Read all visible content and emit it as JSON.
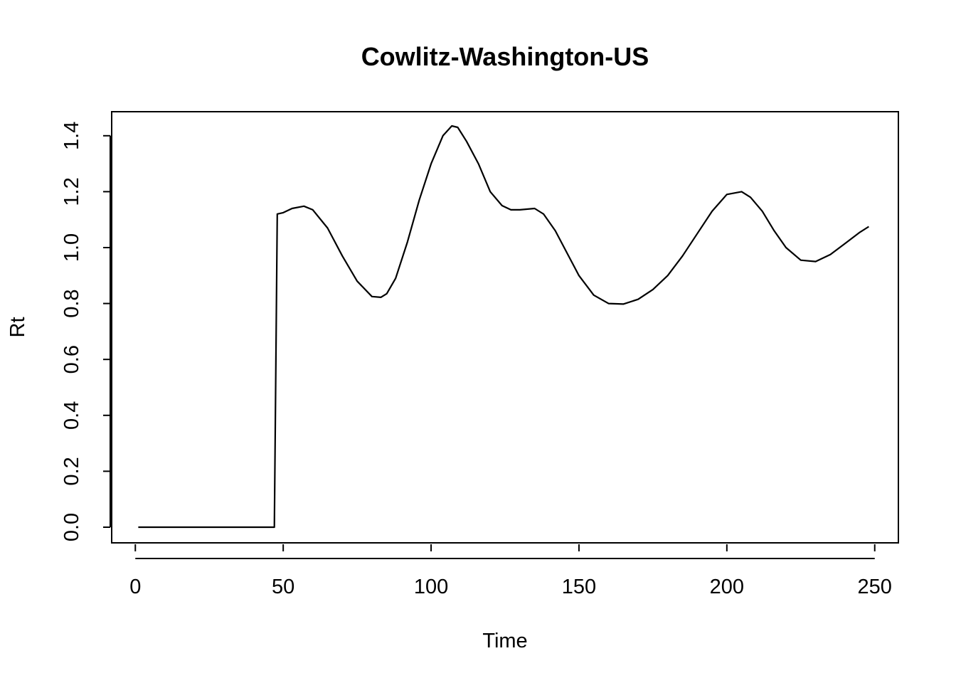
{
  "chart_data": {
    "type": "line",
    "title": "Cowlitz-Washington-US",
    "xlabel": "Time",
    "ylabel": "Rt",
    "xlim": [
      -8,
      258
    ],
    "ylim": [
      -0.056,
      1.486
    ],
    "xticks": [
      0,
      50,
      100,
      150,
      200,
      250
    ],
    "yticks": [
      0.0,
      0.2,
      0.4,
      0.6,
      0.8,
      1.0,
      1.2,
      1.4
    ],
    "xtick_labels": [
      "0",
      "50",
      "100",
      "150",
      "200",
      "250"
    ],
    "ytick_labels": [
      "0.0",
      "0.2",
      "0.4",
      "0.6",
      "0.8",
      "1.0",
      "1.2",
      "1.4"
    ],
    "grid": false,
    "legend": "none",
    "series": [
      {
        "color": "#000000",
        "x": [
          1,
          10,
          20,
          30,
          40,
          47,
          48,
          50,
          53,
          57,
          60,
          65,
          70,
          75,
          80,
          83,
          85,
          88,
          92,
          96,
          100,
          104,
          107,
          109,
          112,
          116,
          120,
          124,
          127,
          130,
          135,
          138,
          142,
          146,
          150,
          155,
          160,
          165,
          170,
          175,
          180,
          185,
          190,
          195,
          200,
          205,
          208,
          212,
          216,
          220,
          225,
          230,
          235,
          240,
          245,
          248
        ],
        "y": [
          0.0,
          0.0,
          0.0,
          0.0,
          0.0,
          0.0,
          1.12,
          1.125,
          1.14,
          1.148,
          1.135,
          1.07,
          0.97,
          0.88,
          0.825,
          0.822,
          0.835,
          0.89,
          1.02,
          1.17,
          1.3,
          1.4,
          1.435,
          1.43,
          1.38,
          1.3,
          1.2,
          1.15,
          1.135,
          1.135,
          1.14,
          1.12,
          1.06,
          0.98,
          0.9,
          0.83,
          0.8,
          0.798,
          0.815,
          0.85,
          0.9,
          0.97,
          1.05,
          1.13,
          1.19,
          1.2,
          1.18,
          1.13,
          1.06,
          1.0,
          0.955,
          0.95,
          0.975,
          1.015,
          1.055,
          1.075
        ]
      }
    ]
  }
}
